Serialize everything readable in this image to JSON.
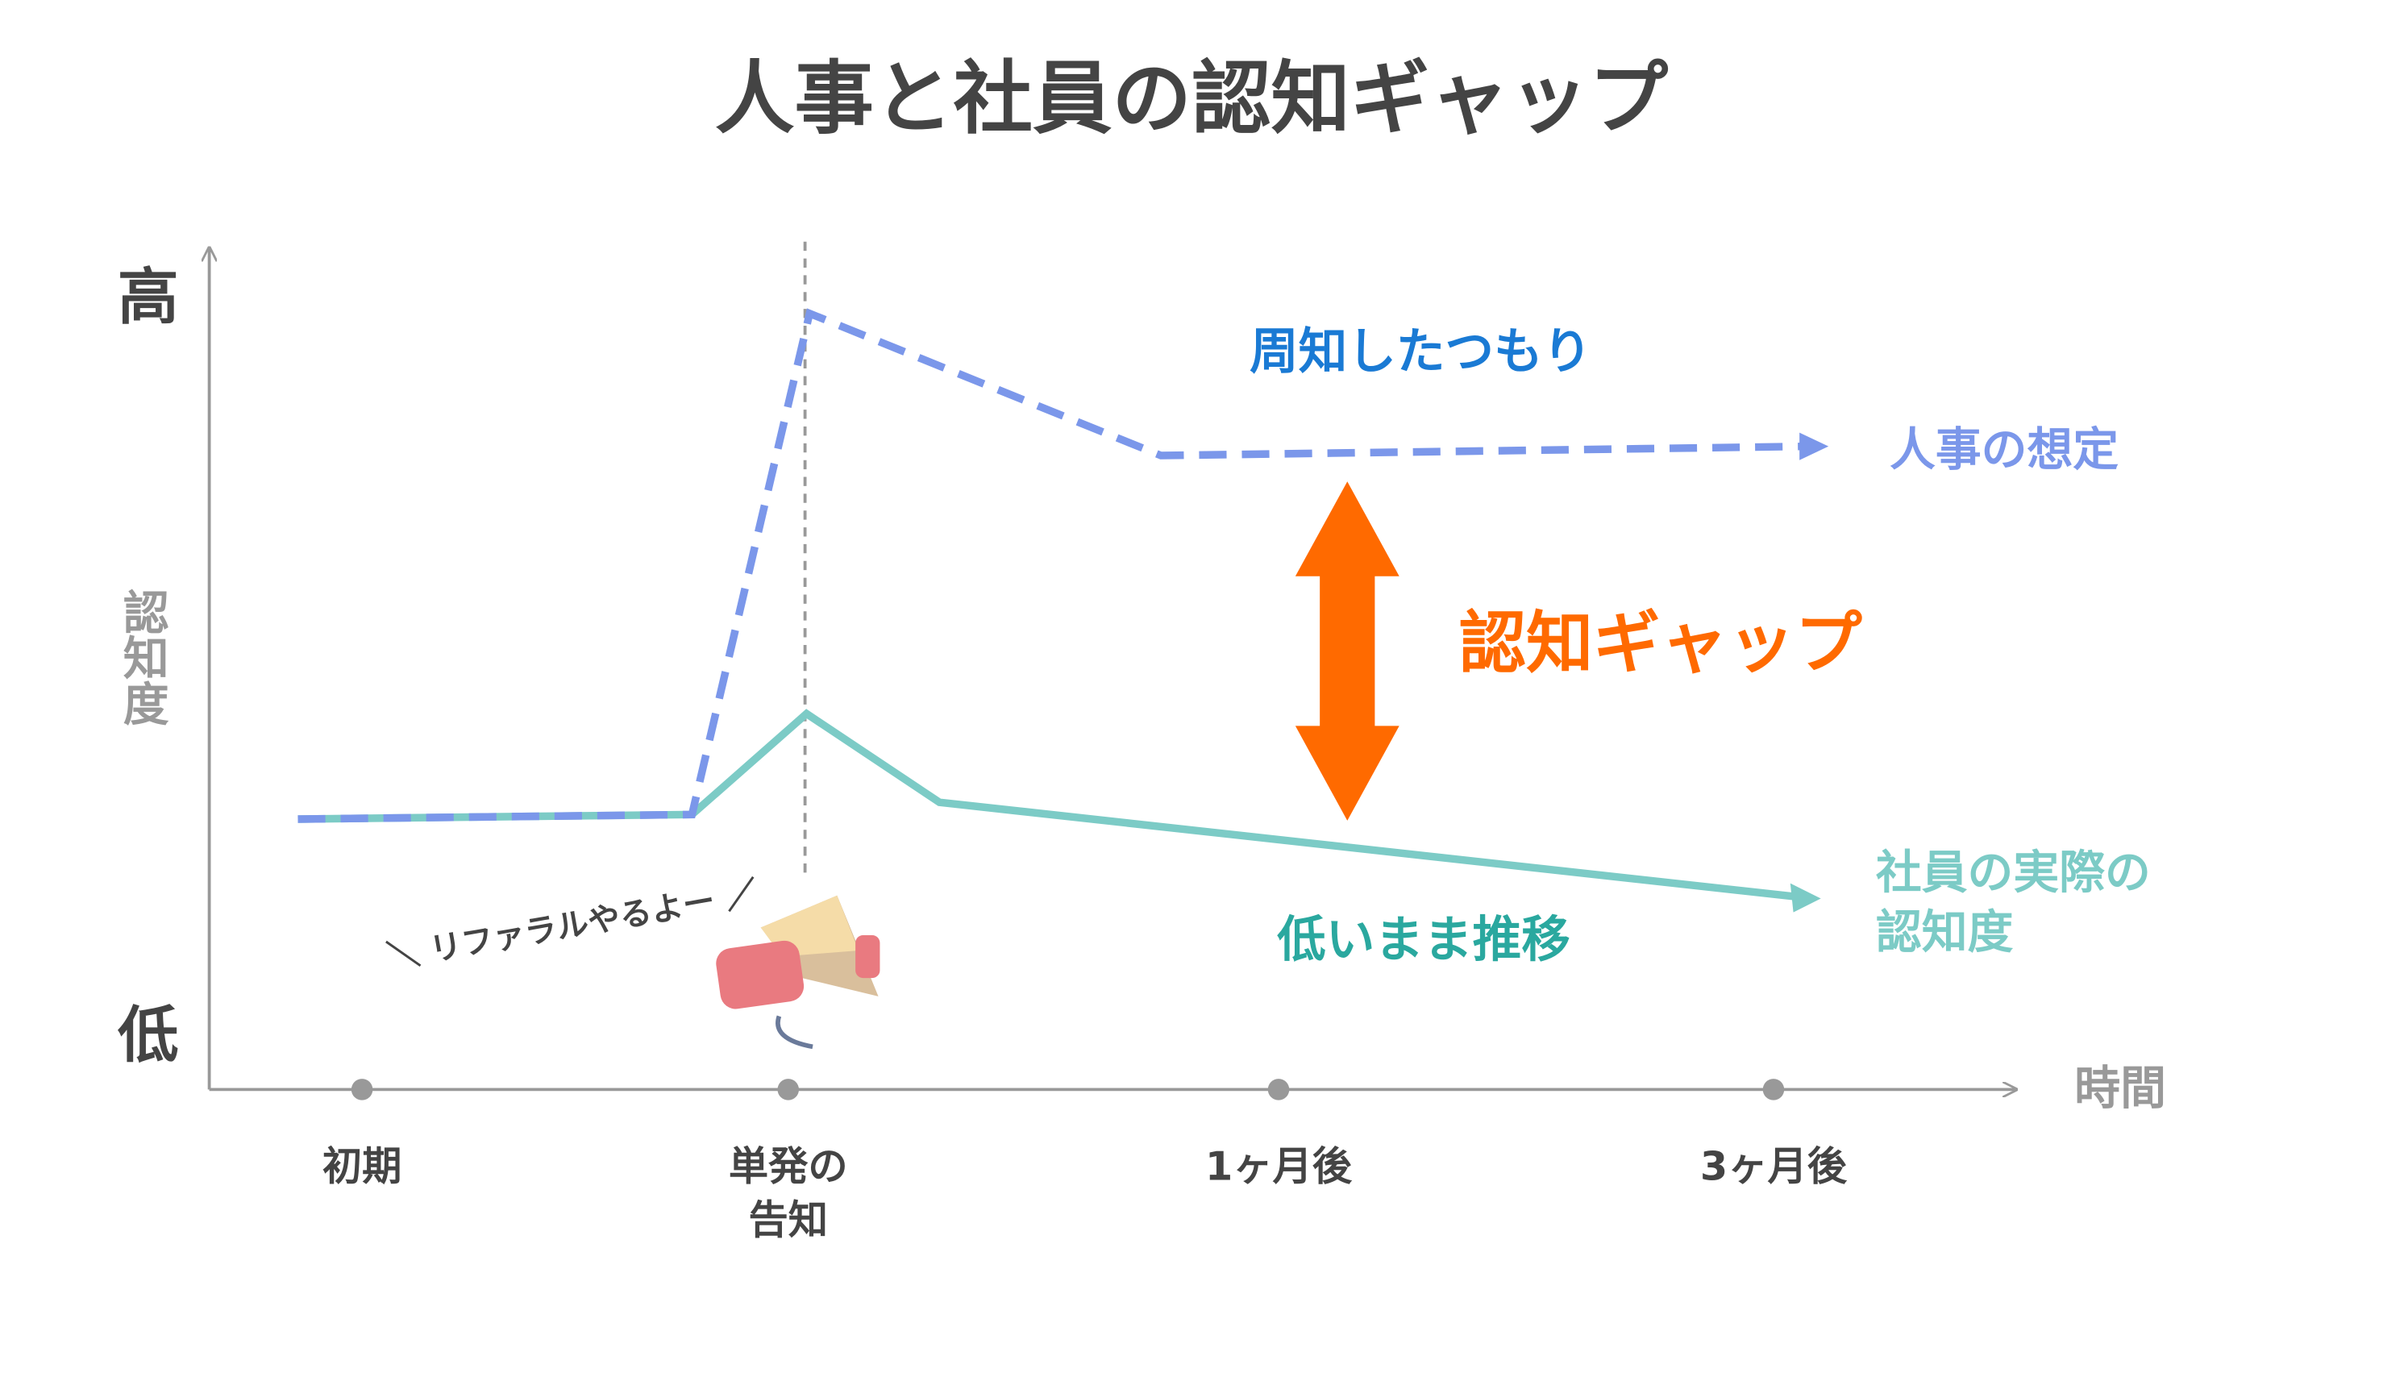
{
  "header": {
    "title": "人事と社員の認知ギャップ"
  },
  "axis": {
    "high": "高",
    "low": "低",
    "y_label": "認知度",
    "x_label": "時間",
    "x_ticks": [
      [
        "初期"
      ],
      [
        "単発の",
        "告知"
      ],
      [
        "1ヶ月後"
      ],
      [
        "3ヶ月後"
      ]
    ]
  },
  "annotations": {
    "hr_intent": "周知したつもり",
    "hr_label": "人事の想定",
    "gap_label": "認知ギャップ",
    "employee_label": [
      "社員の実際の",
      "認知度"
    ],
    "employee_note": "低いまま推移",
    "speech": "＼ リファラルやるよー ／"
  }
}
